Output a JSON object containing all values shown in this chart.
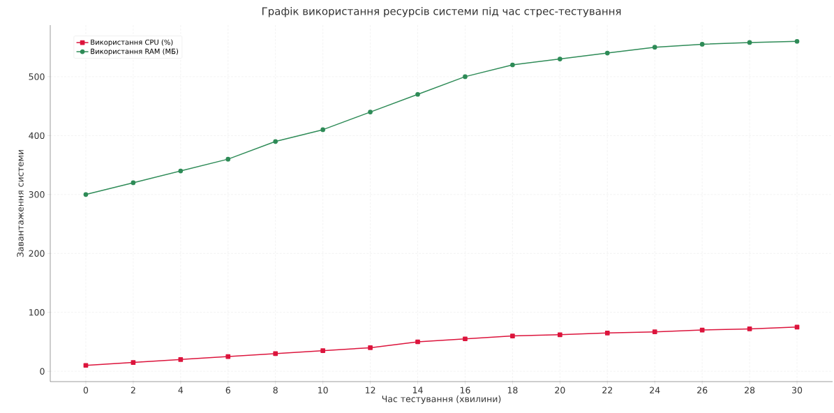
{
  "chart_data": {
    "type": "line",
    "title": "Графік використання ресурсів системи під час стрес-тестування",
    "xlabel": "Час тестування (хвилини)",
    "ylabel": "Завантаження системи",
    "x": [
      0,
      2,
      4,
      6,
      8,
      10,
      12,
      14,
      16,
      18,
      20,
      22,
      24,
      26,
      28,
      30
    ],
    "series": [
      {
        "name": "Використання CPU (%)",
        "color": "#dc143c",
        "marker": "square",
        "values": [
          10,
          15,
          20,
          25,
          30,
          35,
          40,
          50,
          55,
          60,
          62,
          65,
          67,
          70,
          72,
          75
        ]
      },
      {
        "name": "Використання RAM (МБ)",
        "color": "#2e8b57",
        "marker": "circle",
        "values": [
          300,
          320,
          340,
          360,
          390,
          410,
          440,
          470,
          500,
          520,
          530,
          540,
          550,
          555,
          558,
          560
        ]
      }
    ],
    "xlim": [
      -1.5,
      31.5
    ],
    "ylim": [
      -17.5,
      587.5
    ],
    "xticks": [
      0,
      2,
      4,
      6,
      8,
      10,
      12,
      14,
      16,
      18,
      20,
      22,
      24,
      26,
      28,
      30
    ],
    "yticks": [
      0,
      100,
      200,
      300,
      400,
      500
    ],
    "grid": true,
    "legend": "top left",
    "line_style": "solid"
  }
}
